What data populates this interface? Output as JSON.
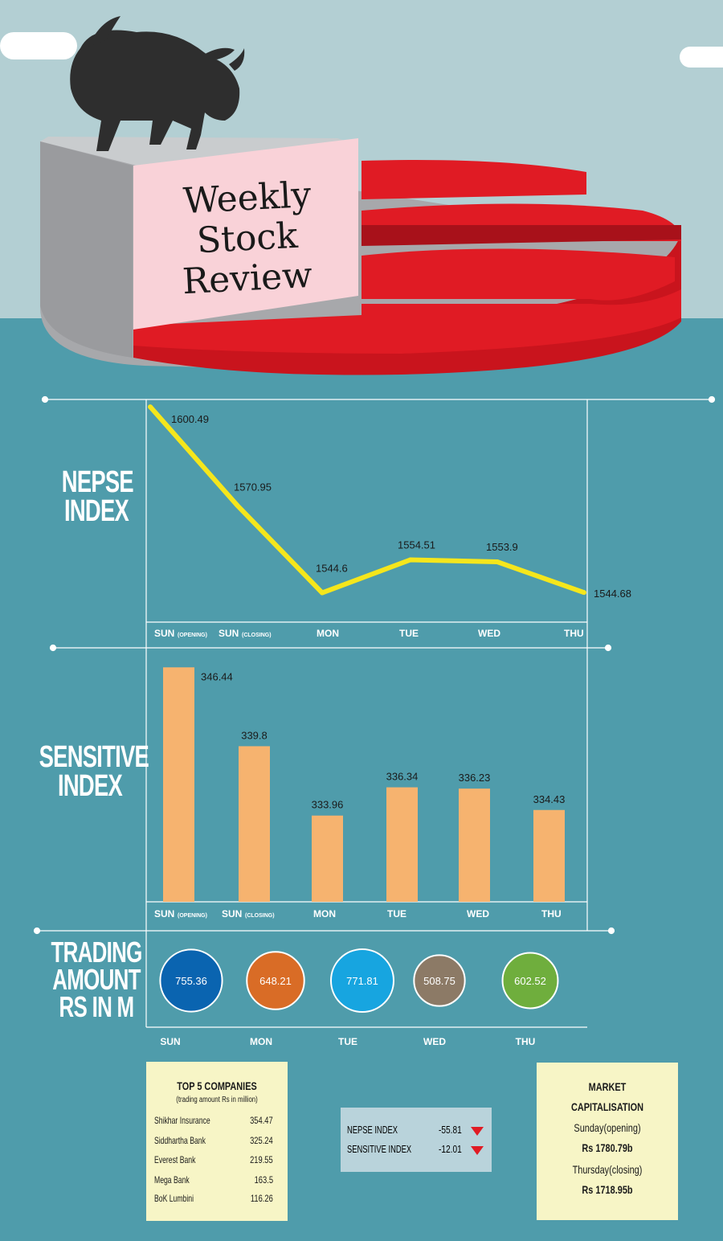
{
  "header": {
    "title_lines": [
      "Weekly",
      "Stock",
      "Review"
    ]
  },
  "colors": {
    "sky": "#b3cfd3",
    "sea": "#4f9cab",
    "pie_red": "#e01b24",
    "pie_gray": "#a7a8ab",
    "title_card": "#f9d2d8",
    "nepse_line": "#f5e61c",
    "sensitive_bar": "#f6b36f",
    "panel_bg": "#f7f5c6",
    "index_box_bg": "#b9d3db",
    "down_arrow": "#e01b24"
  },
  "chart_data": [
    {
      "type": "line",
      "title": "NEPSE INDEX",
      "title_lines": [
        "NEPSE",
        "INDEX"
      ],
      "categories": [
        "SUN (OPENING)",
        "SUN (CLOSING)",
        "MON",
        "TUE",
        "WED",
        "THU"
      ],
      "tick_labels": [
        {
          "main": "SUN",
          "sub": "(OPENING)"
        },
        {
          "main": "SUN",
          "sub": "(CLOSING)"
        },
        {
          "main": "MON",
          "sub": ""
        },
        {
          "main": "TUE",
          "sub": ""
        },
        {
          "main": "WED",
          "sub": ""
        },
        {
          "main": "THU",
          "sub": ""
        }
      ],
      "values": [
        1600.49,
        1570.95,
        1544.6,
        1554.51,
        1553.9,
        1544.68
      ],
      "value_labels": [
        "1600.49",
        "1570.95",
        "1544.6",
        "1554.51",
        "1553.9",
        "1544.68"
      ],
      "ylim": [
        1544,
        1601
      ],
      "color": "#f5e61c",
      "grid": false
    },
    {
      "type": "bar",
      "title": "SENSITIVE INDEX",
      "title_lines": [
        "SENSITIVE",
        "INDEX"
      ],
      "categories": [
        "SUN (OPENING)",
        "SUN (CLOSING)",
        "MON",
        "TUE",
        "WED",
        "THU"
      ],
      "tick_labels": [
        {
          "main": "SUN",
          "sub": "(OPENING)"
        },
        {
          "main": "SUN",
          "sub": "(CLOSING)"
        },
        {
          "main": "MON",
          "sub": ""
        },
        {
          "main": "TUE",
          "sub": ""
        },
        {
          "main": "WED",
          "sub": ""
        },
        {
          "main": "THU",
          "sub": ""
        }
      ],
      "values": [
        346.44,
        339.8,
        333.96,
        336.34,
        336.23,
        334.43
      ],
      "value_labels": [
        "346.44",
        "339.8",
        "333.96",
        "336.34",
        "336.23",
        "334.43"
      ],
      "ylim": [
        326.7,
        347
      ],
      "color": "#f6b36f",
      "grid": false
    },
    {
      "type": "scatter",
      "title": "TRADING AMOUNT RS IN M",
      "title_lines": [
        "TRADING",
        "AMOUNT",
        "RS IN M"
      ],
      "categories": [
        "SUN",
        "MON",
        "TUE",
        "WED",
        "THU"
      ],
      "values": [
        755.36,
        648.21,
        771.81,
        508.75,
        602.52
      ],
      "value_labels": [
        "755.36",
        "648.21",
        "771.81",
        "508.75",
        "602.52"
      ],
      "colors": [
        "#0a64b0",
        "#d96c26",
        "#17a5e0",
        "#8c7a66",
        "#6fae3d"
      ]
    }
  ],
  "top_companies": {
    "title": "TOP 5 COMPANIES",
    "subtitle": "(trading amount Rs in million)",
    "rows": [
      {
        "name": "Shikhar Insurance",
        "value": "354.47"
      },
      {
        "name": "Siddhartha Bank",
        "value": "325.24"
      },
      {
        "name": "Everest Bank",
        "value": "219.55"
      },
      {
        "name": "Mega Bank",
        "value": "163.5"
      },
      {
        "name": "BoK Lumbini",
        "value": "116.26"
      }
    ]
  },
  "index_change": {
    "rows": [
      {
        "name": "NEPSE INDEX",
        "value": "-55.81",
        "icon": "down-triangle-icon"
      },
      {
        "name": "SENSITIVE INDEX",
        "value": "-12.01",
        "icon": "down-triangle-icon"
      }
    ]
  },
  "market_cap": {
    "title_1": "MARKET",
    "title_2": "CAPITALISATION",
    "open_label": "Sunday(opening)",
    "open_value": "Rs 1780.79b",
    "close_label": "Thursday(closing)",
    "close_value": "Rs 1718.95b"
  }
}
